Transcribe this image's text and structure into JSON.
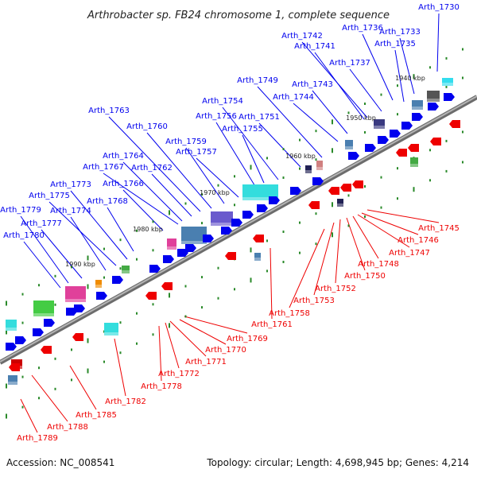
{
  "title": "Arthrobacter sp. FB24 chromosome 1, complete sequence",
  "footer": {
    "accession": "Accession: NC_008541",
    "summary": "Topology: circular; Length: 4,698,945 bp; Genes: 4,214"
  },
  "colors": {
    "forward": "#0000ee",
    "reverse": "#ee0000",
    "backbone": "#8c8c8c",
    "tick": "#2a8a2a"
  },
  "kbp_labels": [
    "1940 kbp",
    "1950 kbp",
    "1960 kbp",
    "1970 kbp",
    "1980 kbp",
    "1990 kbp"
  ],
  "forward_genes": [
    "Arth_1730",
    "Arth_1733",
    "Arth_1735",
    "Arth_1736",
    "Arth_1737",
    "Arth_1741",
    "Arth_1742",
    "Arth_1743",
    "Arth_1744",
    "Arth_1749",
    "Arth_1751",
    "Arth_1754",
    "Arth_1755",
    "Arth_1756",
    "Arth_1757",
    "Arth_1759",
    "Arth_1760",
    "Arth_1762",
    "Arth_1763",
    "Arth_1764",
    "Arth_1766",
    "Arth_1767",
    "Arth_1768",
    "Arth_1773",
    "Arth_1774",
    "Arth_1775",
    "Arth_1777",
    "Arth_1779",
    "Arth_1780"
  ],
  "reverse_genes": [
    "Arth_1745",
    "Arth_1746",
    "Arth_1747",
    "Arth_1748",
    "Arth_1750",
    "Arth_1752",
    "Arth_1753",
    "Arth_1758",
    "Arth_1761",
    "Arth_1769",
    "Arth_1770",
    "Arth_1771",
    "Arth_1772",
    "Arth_1778",
    "Arth_1782",
    "Arth_1785",
    "Arth_1788",
    "Arth_1789"
  ]
}
